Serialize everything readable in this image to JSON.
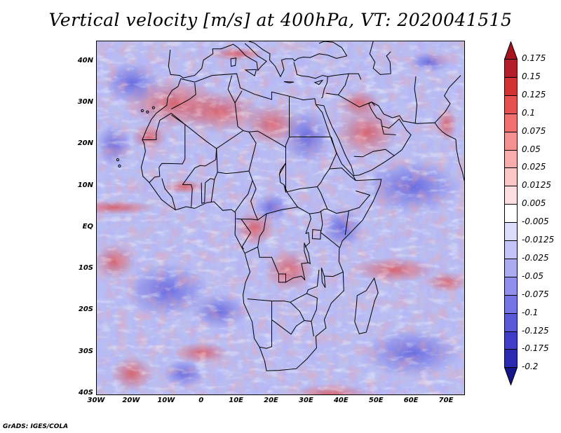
{
  "title": "Vertical velocity [m/s] at 400hPa, VT: 2020041515",
  "footer": "GrADS: IGES/COLA",
  "map": {
    "projection": "lat-lon",
    "lon_range": [
      -30,
      75
    ],
    "lat_range": [
      -40,
      45
    ],
    "lat_labels": [
      "40N",
      "30N",
      "20N",
      "10N",
      "EQ",
      "10S",
      "20S",
      "30S",
      "40S"
    ],
    "lon_labels": [
      "30W",
      "20W",
      "10W",
      "0",
      "10E",
      "20E",
      "30E",
      "40E",
      "50E",
      "60E",
      "70E"
    ]
  },
  "colorbar": {
    "labels": [
      "0.175",
      "0.15",
      "0.125",
      "0.1",
      "0.075",
      "0.05",
      "0.025",
      "0.0125",
      "0.005",
      "-0.005",
      "-0.0125",
      "-0.025",
      "-0.05",
      "-0.075",
      "-0.1",
      "-0.125",
      "-0.175",
      "-0.2"
    ],
    "top_triangle_color": "#a8141e",
    "bottom_triangle_color": "#14148c",
    "colors": [
      "#b41e28",
      "#d23232",
      "#e65050",
      "#f07070",
      "#f59090",
      "#f8acac",
      "#fbc6c6",
      "#fddede",
      "#ffffff",
      "#dcdcfb",
      "#c4c4f7",
      "#ababf2",
      "#9090ec",
      "#7474e4",
      "#5a5ad8",
      "#3e3ec8",
      "#2a2ab0"
    ]
  },
  "colors": {
    "positive": "#e66060",
    "negative": "#6a6ae6",
    "background": "#b9bff0",
    "coastline": "#000000"
  }
}
